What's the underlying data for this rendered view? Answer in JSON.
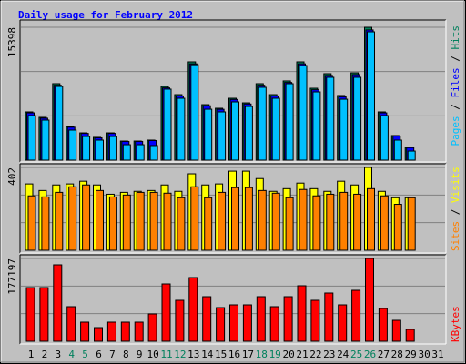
{
  "chart_data": [
    {
      "type": "bar",
      "title": "Daily usage for February 2012",
      "ylim": [
        0,
        15398
      ],
      "yticks": [
        15398
      ],
      "legend_separator": " / ",
      "series": [
        {
          "name": "Hits",
          "color": "#00805C",
          "values": [
            5590,
            4960,
            8860,
            3900,
            3160,
            2640,
            3160,
            2210,
            2210,
            2320,
            8540,
            7590,
            11390,
            6430,
            6010,
            7170,
            6640,
            8860,
            7590,
            9180,
            11390,
            8330,
            10020,
            7490,
            10120,
            15398,
            5590,
            2850,
            1480,
            null,
            null
          ]
        },
        {
          "name": "Files",
          "color": "#0000FF",
          "values": [
            5480,
            4860,
            8680,
            3820,
            3100,
            2590,
            3100,
            2170,
            2170,
            2270,
            8370,
            7440,
            11160,
            6300,
            5890,
            7030,
            6510,
            8680,
            7440,
            9000,
            11160,
            8160,
            9820,
            7340,
            9920,
            15090,
            5480,
            2790,
            1450,
            null,
            null
          ]
        },
        {
          "name": "Pages",
          "color": "#00C0FF",
          "values": [
            5170,
            4640,
            8540,
            3480,
            2740,
            2320,
            2740,
            1790,
            1790,
            1690,
            8230,
            7170,
            11060,
            5900,
            5590,
            6750,
            6220,
            8440,
            7170,
            8860,
            10970,
            7910,
            9600,
            7060,
            9600,
            14870,
            5170,
            2320,
            1050,
            null,
            null
          ]
        }
      ]
    },
    {
      "type": "bar",
      "ylim": [
        0,
        402
      ],
      "yticks": [
        402
      ],
      "legend_separator": " / ",
      "series": [
        {
          "name": "Visits",
          "color": "#FFFF00",
          "values": [
            322,
            290,
            317,
            322,
            335,
            317,
            272,
            281,
            286,
            290,
            317,
            286,
            371,
            317,
            322,
            384,
            384,
            348,
            286,
            299,
            326,
            299,
            286,
            335,
            317,
            402,
            286,
            255,
            255,
            null,
            null
          ]
        },
        {
          "name": "Sites",
          "color": "#FF8000",
          "values": [
            264,
            259,
            281,
            308,
            317,
            290,
            259,
            268,
            281,
            281,
            277,
            255,
            308,
            255,
            281,
            304,
            304,
            290,
            277,
            255,
            295,
            264,
            272,
            281,
            272,
            299,
            264,
            223,
            255,
            null,
            null
          ]
        }
      ]
    },
    {
      "type": "bar",
      "ylim": [
        0,
        177197
      ],
      "yticks": [
        177197
      ],
      "categories": [
        "1",
        "2",
        "3",
        "4",
        "5",
        "6",
        "7",
        "8",
        "9",
        "10",
        "11",
        "12",
        "13",
        "14",
        "15",
        "16",
        "17",
        "18",
        "19",
        "20",
        "21",
        "22",
        "23",
        "24",
        "25",
        "26",
        "27",
        "28",
        "29",
        "30",
        "31"
      ],
      "label_colors": [
        "#000000",
        "#000000",
        "#000000",
        "#00805C",
        "#00805C",
        "#000000",
        "#000000",
        "#000000",
        "#000000",
        "#000000",
        "#00805C",
        "#00805C",
        "#000000",
        "#000000",
        "#000000",
        "#000000",
        "#000000",
        "#00805C",
        "#00805C",
        "#000000",
        "#000000",
        "#000000",
        "#000000",
        "#000000",
        "#00805C",
        "#00805C",
        "#000000",
        "#000000",
        "#000000",
        "#000000",
        "#000000"
      ],
      "series": [
        {
          "name": "KBytes",
          "color": "#FF0000",
          "values": [
            114885,
            114885,
            163565,
            73994,
            40891,
            29208,
            40891,
            40891,
            40891,
            58416,
            122674,
            87624,
            136304,
            95413,
            72046,
            77888,
            77888,
            95413,
            73994,
            95413,
            118779,
            87624,
            103202,
            77888,
            109043,
            177197,
            70099,
            44786,
            25314,
            null,
            null
          ]
        }
      ]
    }
  ]
}
